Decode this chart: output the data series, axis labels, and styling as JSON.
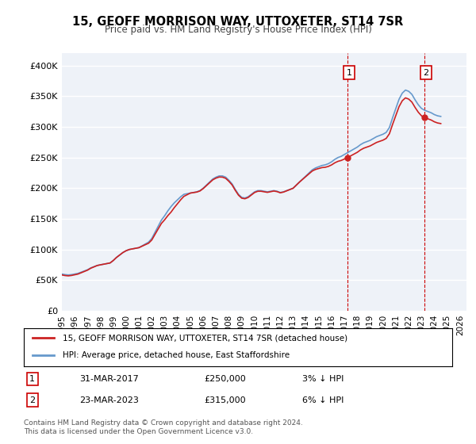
{
  "title": "15, GEOFF MORRISON WAY, UTTOXETER, ST14 7SR",
  "subtitle": "Price paid vs. HM Land Registry's House Price Index (HPI)",
  "ylabel": "",
  "xlabel": "",
  "ylim": [
    0,
    420000
  ],
  "xlim_start": 1995.0,
  "xlim_end": 2026.5,
  "yticks": [
    0,
    50000,
    100000,
    150000,
    200000,
    250000,
    300000,
    350000,
    400000
  ],
  "ytick_labels": [
    "£0",
    "£50K",
    "£100K",
    "£150K",
    "£200K",
    "£250K",
    "£300K",
    "£350K",
    "£400K"
  ],
  "xticks": [
    1995,
    1996,
    1997,
    1998,
    1999,
    2000,
    2001,
    2002,
    2003,
    2004,
    2005,
    2006,
    2007,
    2008,
    2009,
    2010,
    2011,
    2012,
    2013,
    2014,
    2015,
    2016,
    2017,
    2018,
    2019,
    2020,
    2021,
    2022,
    2023,
    2024,
    2025,
    2026
  ],
  "hpi_color": "#6699cc",
  "price_color": "#cc2222",
  "annotation_color": "#cc0000",
  "dashed_color": "#cc0000",
  "background_color": "#ffffff",
  "plot_bg_color": "#eef2f8",
  "grid_color": "#ffffff",
  "legend_line1": "15, GEOFF MORRISON WAY, UTTOXETER, ST14 7SR (detached house)",
  "legend_line2": "HPI: Average price, detached house, East Staffordshire",
  "ann1_label": "1",
  "ann1_date": "31-MAR-2017",
  "ann1_price": "£250,000",
  "ann1_hpi": "3% ↓ HPI",
  "ann1_x": 2017.25,
  "ann1_y": 250000,
  "ann2_label": "2",
  "ann2_date": "23-MAR-2023",
  "ann2_price": "£315,000",
  "ann2_hpi": "6% ↓ HPI",
  "ann2_x": 2023.25,
  "ann2_y": 315000,
  "footnote": "Contains HM Land Registry data © Crown copyright and database right 2024.\nThis data is licensed under the Open Government Licence v3.0.",
  "hpi_data_x": [
    1995.0,
    1995.25,
    1995.5,
    1995.75,
    1996.0,
    1996.25,
    1996.5,
    1996.75,
    1997.0,
    1997.25,
    1997.5,
    1997.75,
    1998.0,
    1998.25,
    1998.5,
    1998.75,
    1999.0,
    1999.25,
    1999.5,
    1999.75,
    2000.0,
    2000.25,
    2000.5,
    2000.75,
    2001.0,
    2001.25,
    2001.5,
    2001.75,
    2002.0,
    2002.25,
    2002.5,
    2002.75,
    2003.0,
    2003.25,
    2003.5,
    2003.75,
    2004.0,
    2004.25,
    2004.5,
    2004.75,
    2005.0,
    2005.25,
    2005.5,
    2005.75,
    2006.0,
    2006.25,
    2006.5,
    2006.75,
    2007.0,
    2007.25,
    2007.5,
    2007.75,
    2008.0,
    2008.25,
    2008.5,
    2008.75,
    2009.0,
    2009.25,
    2009.5,
    2009.75,
    2010.0,
    2010.25,
    2010.5,
    2010.75,
    2011.0,
    2011.25,
    2011.5,
    2011.75,
    2012.0,
    2012.25,
    2012.5,
    2012.75,
    2013.0,
    2013.25,
    2013.5,
    2013.75,
    2014.0,
    2014.25,
    2014.5,
    2014.75,
    2015.0,
    2015.25,
    2015.5,
    2015.75,
    2016.0,
    2016.25,
    2016.5,
    2016.75,
    2017.0,
    2017.25,
    2017.5,
    2017.75,
    2018.0,
    2018.25,
    2018.5,
    2018.75,
    2019.0,
    2019.25,
    2019.5,
    2019.75,
    2020.0,
    2020.25,
    2020.5,
    2020.75,
    2021.0,
    2021.25,
    2021.5,
    2021.75,
    2022.0,
    2022.25,
    2022.5,
    2022.75,
    2023.0,
    2023.25,
    2023.5,
    2023.75,
    2024.0,
    2024.25,
    2024.5
  ],
  "hpi_data_y": [
    60000,
    59000,
    58500,
    59000,
    60000,
    61000,
    63000,
    65000,
    67000,
    70000,
    72000,
    74000,
    75000,
    76000,
    77000,
    78000,
    82000,
    87000,
    91000,
    95000,
    98000,
    100000,
    101000,
    102000,
    103000,
    106000,
    109000,
    112000,
    118000,
    128000,
    138000,
    148000,
    155000,
    163000,
    170000,
    176000,
    181000,
    186000,
    190000,
    191000,
    192000,
    193000,
    194000,
    196000,
    200000,
    205000,
    210000,
    215000,
    218000,
    220000,
    220000,
    218000,
    213000,
    207000,
    198000,
    190000,
    185000,
    184000,
    186000,
    190000,
    194000,
    196000,
    196000,
    195000,
    194000,
    195000,
    196000,
    195000,
    193000,
    194000,
    196000,
    198000,
    200000,
    205000,
    210000,
    215000,
    220000,
    225000,
    230000,
    233000,
    235000,
    237000,
    238000,
    240000,
    243000,
    247000,
    250000,
    252000,
    255000,
    258000,
    261000,
    264000,
    267000,
    271000,
    274000,
    276000,
    278000,
    281000,
    284000,
    286000,
    288000,
    291000,
    299000,
    315000,
    330000,
    345000,
    355000,
    360000,
    358000,
    353000,
    344000,
    336000,
    330000,
    327000,
    325000,
    323000,
    320000,
    318000,
    317000
  ],
  "price_data_x": [
    1995.5,
    1998.0,
    2001.0,
    2003.5,
    2005.0,
    2007.5,
    2010.5,
    2013.5,
    2017.25,
    2023.25
  ],
  "price_data_y": [
    57000,
    75000,
    103000,
    161000,
    192000,
    218000,
    195000,
    210000,
    250000,
    315000
  ]
}
